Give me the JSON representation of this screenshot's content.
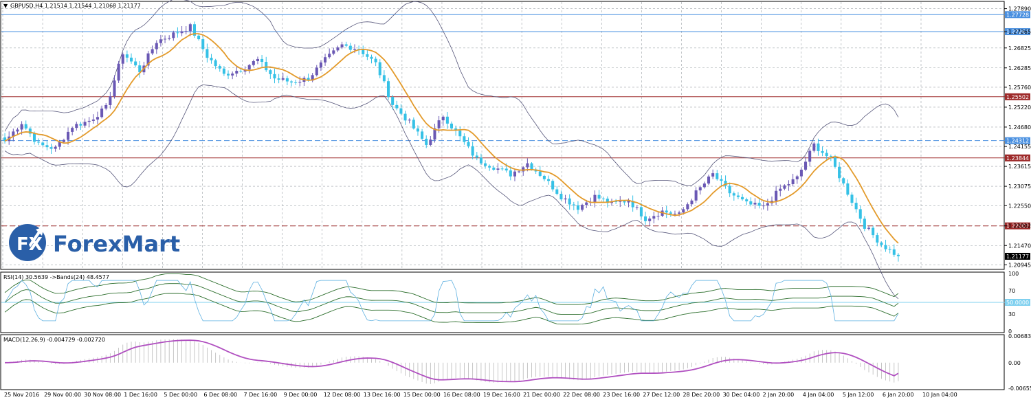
{
  "header": {
    "main_title": "GBPUSD,H4  1.21514 1.21544 1.21068 1.21177",
    "rsi_title": "RSI(14) 30.5639  ->Bands(24) 48.4577",
    "macd_title": "MACD(12,26,9) -0.004729 -0.002720"
  },
  "logo": {
    "mark": "FX",
    "text": "ForexMart"
  },
  "colors": {
    "bull": "#6a58b4",
    "bear": "#35c1e6",
    "ma": "#e39a2a",
    "bands": "#56567a",
    "grid": "#9aa0a6",
    "blue_line": "#4a90e0",
    "red_line": "#9e2a2a",
    "rsi_band": "#2c6e2c",
    "rsi_line": "#5eb0e0",
    "macd_signal": "#b04fc0"
  },
  "chart_data": [
    {
      "type": "candlestick",
      "title": "GBPUSD,H4",
      "ohlc_readout": [
        1.21514,
        1.21544,
        1.21068,
        1.21177
      ],
      "last_price": 1.21177,
      "ylim": [
        1.2086,
        1.2805
      ],
      "y_ticks": [
        "1.27890",
        "1.27265",
        "1.26825",
        "1.26285",
        "1.25760",
        "1.25220",
        "1.24680",
        "1.24155",
        "1.23615",
        "1.23075",
        "1.22550",
        "1.22002",
        "1.21470",
        "1.20945"
      ],
      "x_ticks": [
        "25 Nov 2016",
        "29 Nov 00:00",
        "30 Nov 08:00",
        "1 Dec 16:00",
        "5 Dec 00:00",
        "6 Dec 08:00",
        "7 Dec 16:00",
        "9 Dec 00:00",
        "12 Dec 08:00",
        "13 Dec 16:00",
        "15 Dec 00:00",
        "16 Dec 08:00",
        "19 Dec 16:00",
        "21 Dec 00:00",
        "22 Dec 08:00",
        "23 Dec 16:00",
        "27 Dec 12:00",
        "28 Dec 20:00",
        "30 Dec 04:00",
        "2 Jan 20:00",
        "4 Jan 04:00",
        "5 Jan 12:00",
        "6 Jan 20:00",
        "10 Jan 04:00"
      ],
      "price_levels": [
        {
          "value": 1.27728,
          "label": "1.27728",
          "color": "#4a90e0",
          "style": "solid"
        },
        {
          "value": 1.27267,
          "label": "1.27267",
          "color": "#4a90e0",
          "style": "solid"
        },
        {
          "value": 1.25502,
          "label": "1.25502",
          "color": "#9e2a2a",
          "style": "solid"
        },
        {
          "value": 1.24312,
          "label": "1.24312",
          "color": "#4a90e0",
          "style": "dashed"
        },
        {
          "value": 1.23844,
          "label": "1.23844",
          "color": "#9e2a2a",
          "style": "solid"
        },
        {
          "value": 1.22002,
          "label": "1.22002",
          "color": "#9e2a2a",
          "style": "dashed"
        },
        {
          "value": 1.21177,
          "label": "1.21177",
          "color": "#000000",
          "style": "marker"
        }
      ],
      "anchors": [
        [
          0,
          1.243
        ],
        [
          4,
          1.248
        ],
        [
          8,
          1.242
        ],
        [
          12,
          1.241
        ],
        [
          16,
          1.247
        ],
        [
          20,
          1.2485
        ],
        [
          24,
          1.252
        ],
        [
          28,
          1.267
        ],
        [
          32,
          1.262
        ],
        [
          36,
          1.27
        ],
        [
          40,
          1.272
        ],
        [
          44,
          1.274
        ],
        [
          48,
          1.266
        ],
        [
          52,
          1.261
        ],
        [
          56,
          1.2625
        ],
        [
          60,
          1.265
        ],
        [
          64,
          1.26
        ],
        [
          68,
          1.259
        ],
        [
          72,
          1.26
        ],
        [
          76,
          1.265
        ],
        [
          80,
          1.269
        ],
        [
          84,
          1.268
        ],
        [
          88,
          1.264
        ],
        [
          92,
          1.253
        ],
        [
          96,
          1.248
        ],
        [
          100,
          1.242
        ],
        [
          104,
          1.25
        ],
        [
          108,
          1.244
        ],
        [
          112,
          1.238
        ],
        [
          116,
          1.236
        ],
        [
          120,
          1.234
        ],
        [
          124,
          1.237
        ],
        [
          128,
          1.233
        ],
        [
          132,
          1.228
        ],
        [
          136,
          1.225
        ],
        [
          140,
          1.228
        ],
        [
          144,
          1.226
        ],
        [
          148,
          1.227
        ],
        [
          152,
          1.222
        ],
        [
          156,
          1.224
        ],
        [
          160,
          1.223
        ],
        [
          164,
          1.229
        ],
        [
          168,
          1.234
        ],
        [
          172,
          1.229
        ],
        [
          176,
          1.226
        ],
        [
          180,
          1.225
        ],
        [
          184,
          1.23
        ],
        [
          188,
          1.233
        ],
        [
          192,
          1.242
        ],
        [
          196,
          1.238
        ],
        [
          200,
          1.229
        ],
        [
          204,
          1.22
        ],
        [
          208,
          1.215
        ],
        [
          212,
          1.2118
        ]
      ],
      "series_ma_lag": 9,
      "rsi": {
        "title": "RSI(14) 30.5639  ->Bands(24) 48.4577",
        "ylim": [
          0,
          100
        ],
        "y_ticks": [
          "100",
          "70",
          "50.0000",
          "30",
          "0"
        ],
        "level": 50,
        "last_rsi": 30.5639,
        "band_mid": 48.4577
      },
      "macd": {
        "title": "MACD(12,26,9) -0.004729 -0.002720",
        "ylim": [
          -0.00655,
          0.00683
        ],
        "y_ticks": [
          "0.006834",
          "0.00",
          "-0.006553"
        ],
        "macd": -0.004729,
        "signal": -0.00272
      }
    }
  ]
}
